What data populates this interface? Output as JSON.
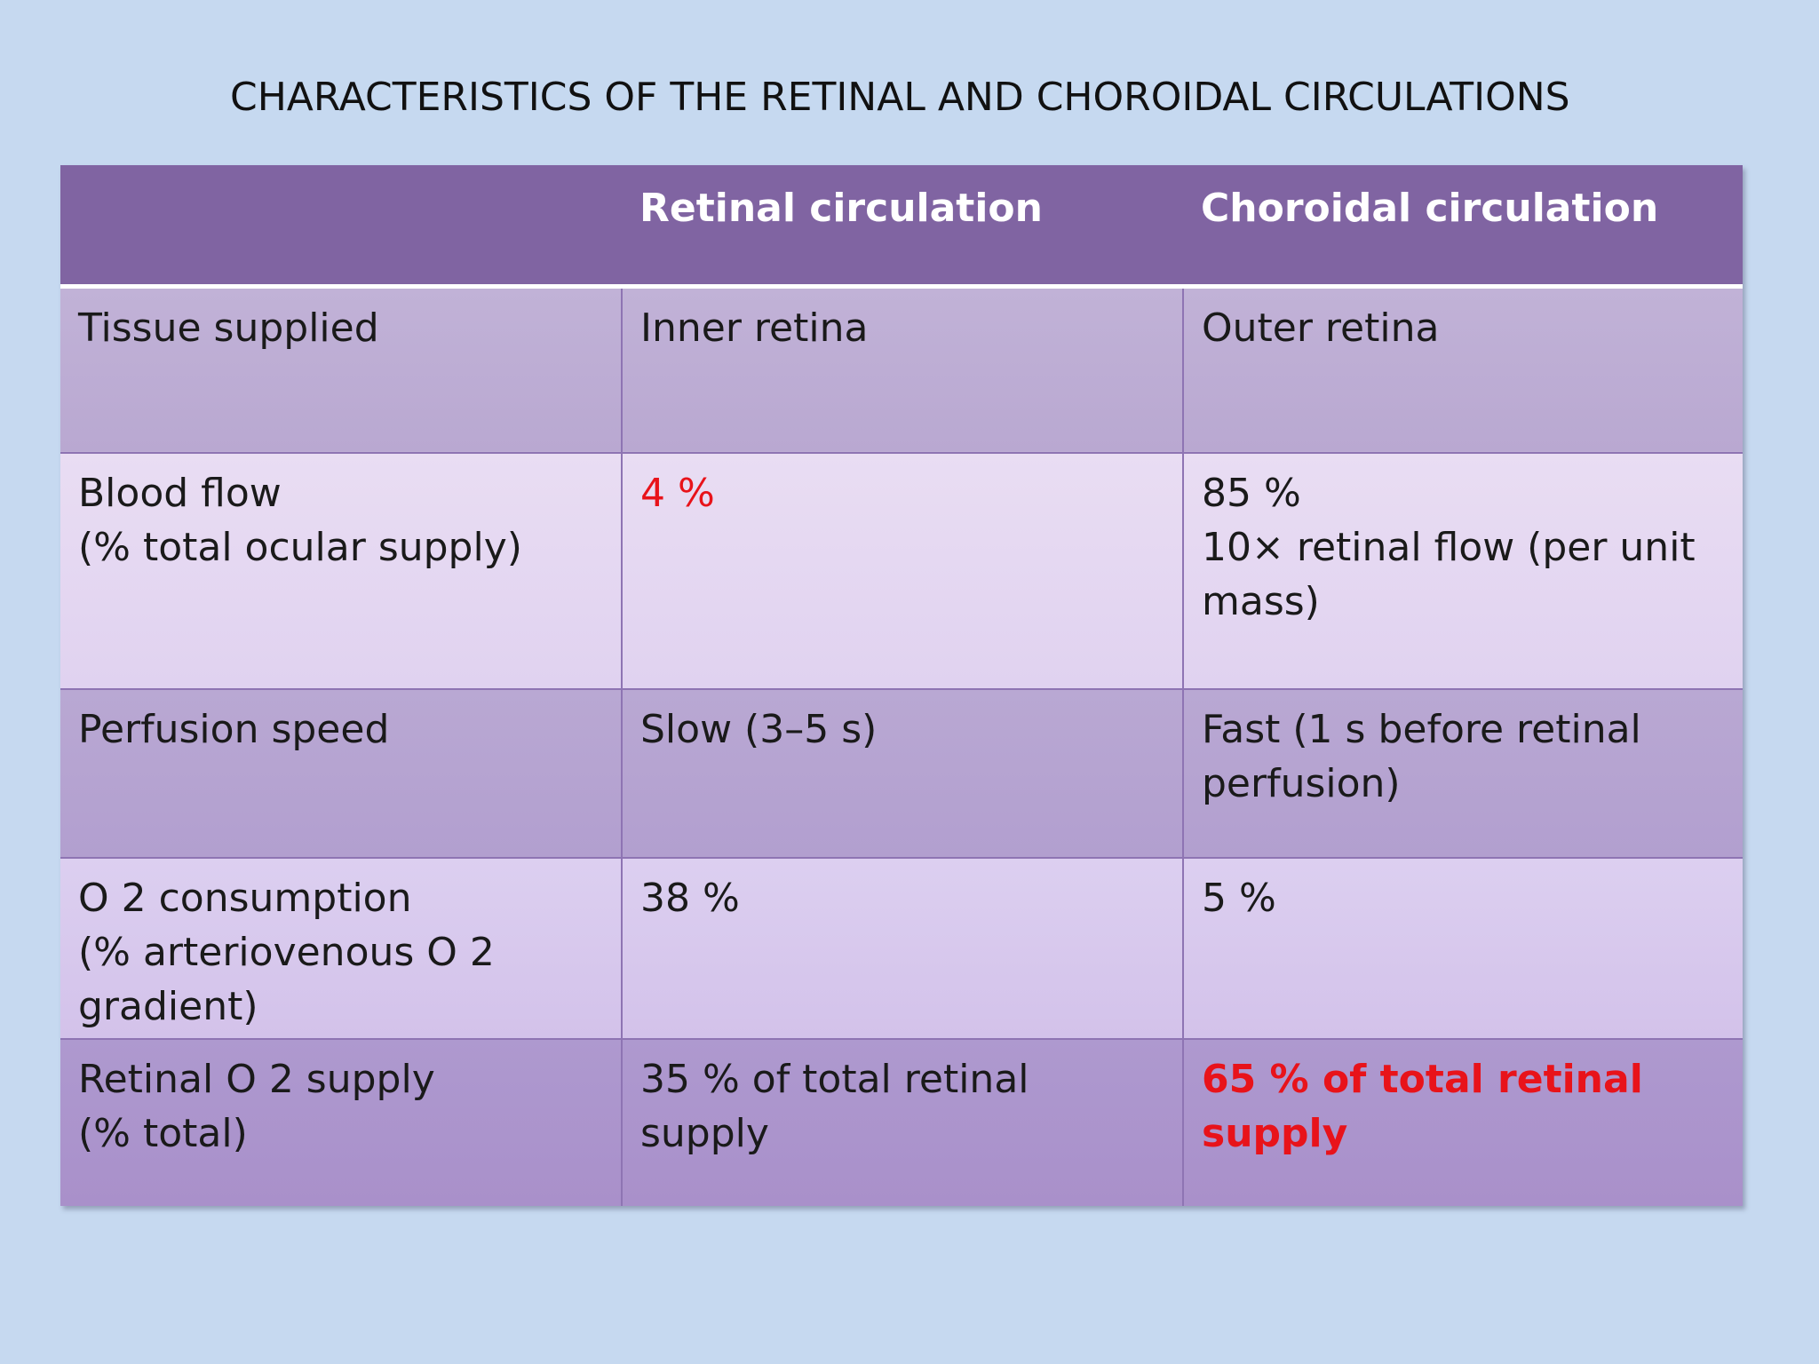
{
  "title": "CHARACTERISTICS OF THE RETINAL AND CHOROIDAL CIRCULATIONS",
  "colors": {
    "background": "#c6d9f0",
    "header": "#8064a2",
    "highlight_red": "#e8131a"
  },
  "table": {
    "headers": [
      "",
      "Retinal circulation",
      "Choroidal circulation"
    ],
    "rows": [
      {
        "label": [
          "Tissue supplied"
        ],
        "retinal": "Inner retina",
        "choroidal": [
          "Outer retina"
        ]
      },
      {
        "label": [
          "Blood flow",
          "(% total ocular supply)"
        ],
        "retinal": "4 %",
        "choroidal": [
          "85 %",
          "10× retinal flow (per unit mass)"
        ]
      },
      {
        "label": [
          "Perfusion speed"
        ],
        "retinal": "Slow (3–5 s)",
        "choroidal": [
          "Fast (1 s before retinal perfusion)"
        ]
      },
      {
        "label": [
          "O 2 consumption",
          "(% arteriovenous O 2 gradient)"
        ],
        "retinal": "38 %",
        "choroidal": [
          "5 %"
        ]
      },
      {
        "label": [
          "Retinal O 2 supply",
          "(% total)"
        ],
        "retinal": "35 % of total retinal supply",
        "choroidal": [
          "65 % of total retinal supply"
        ]
      }
    ]
  }
}
